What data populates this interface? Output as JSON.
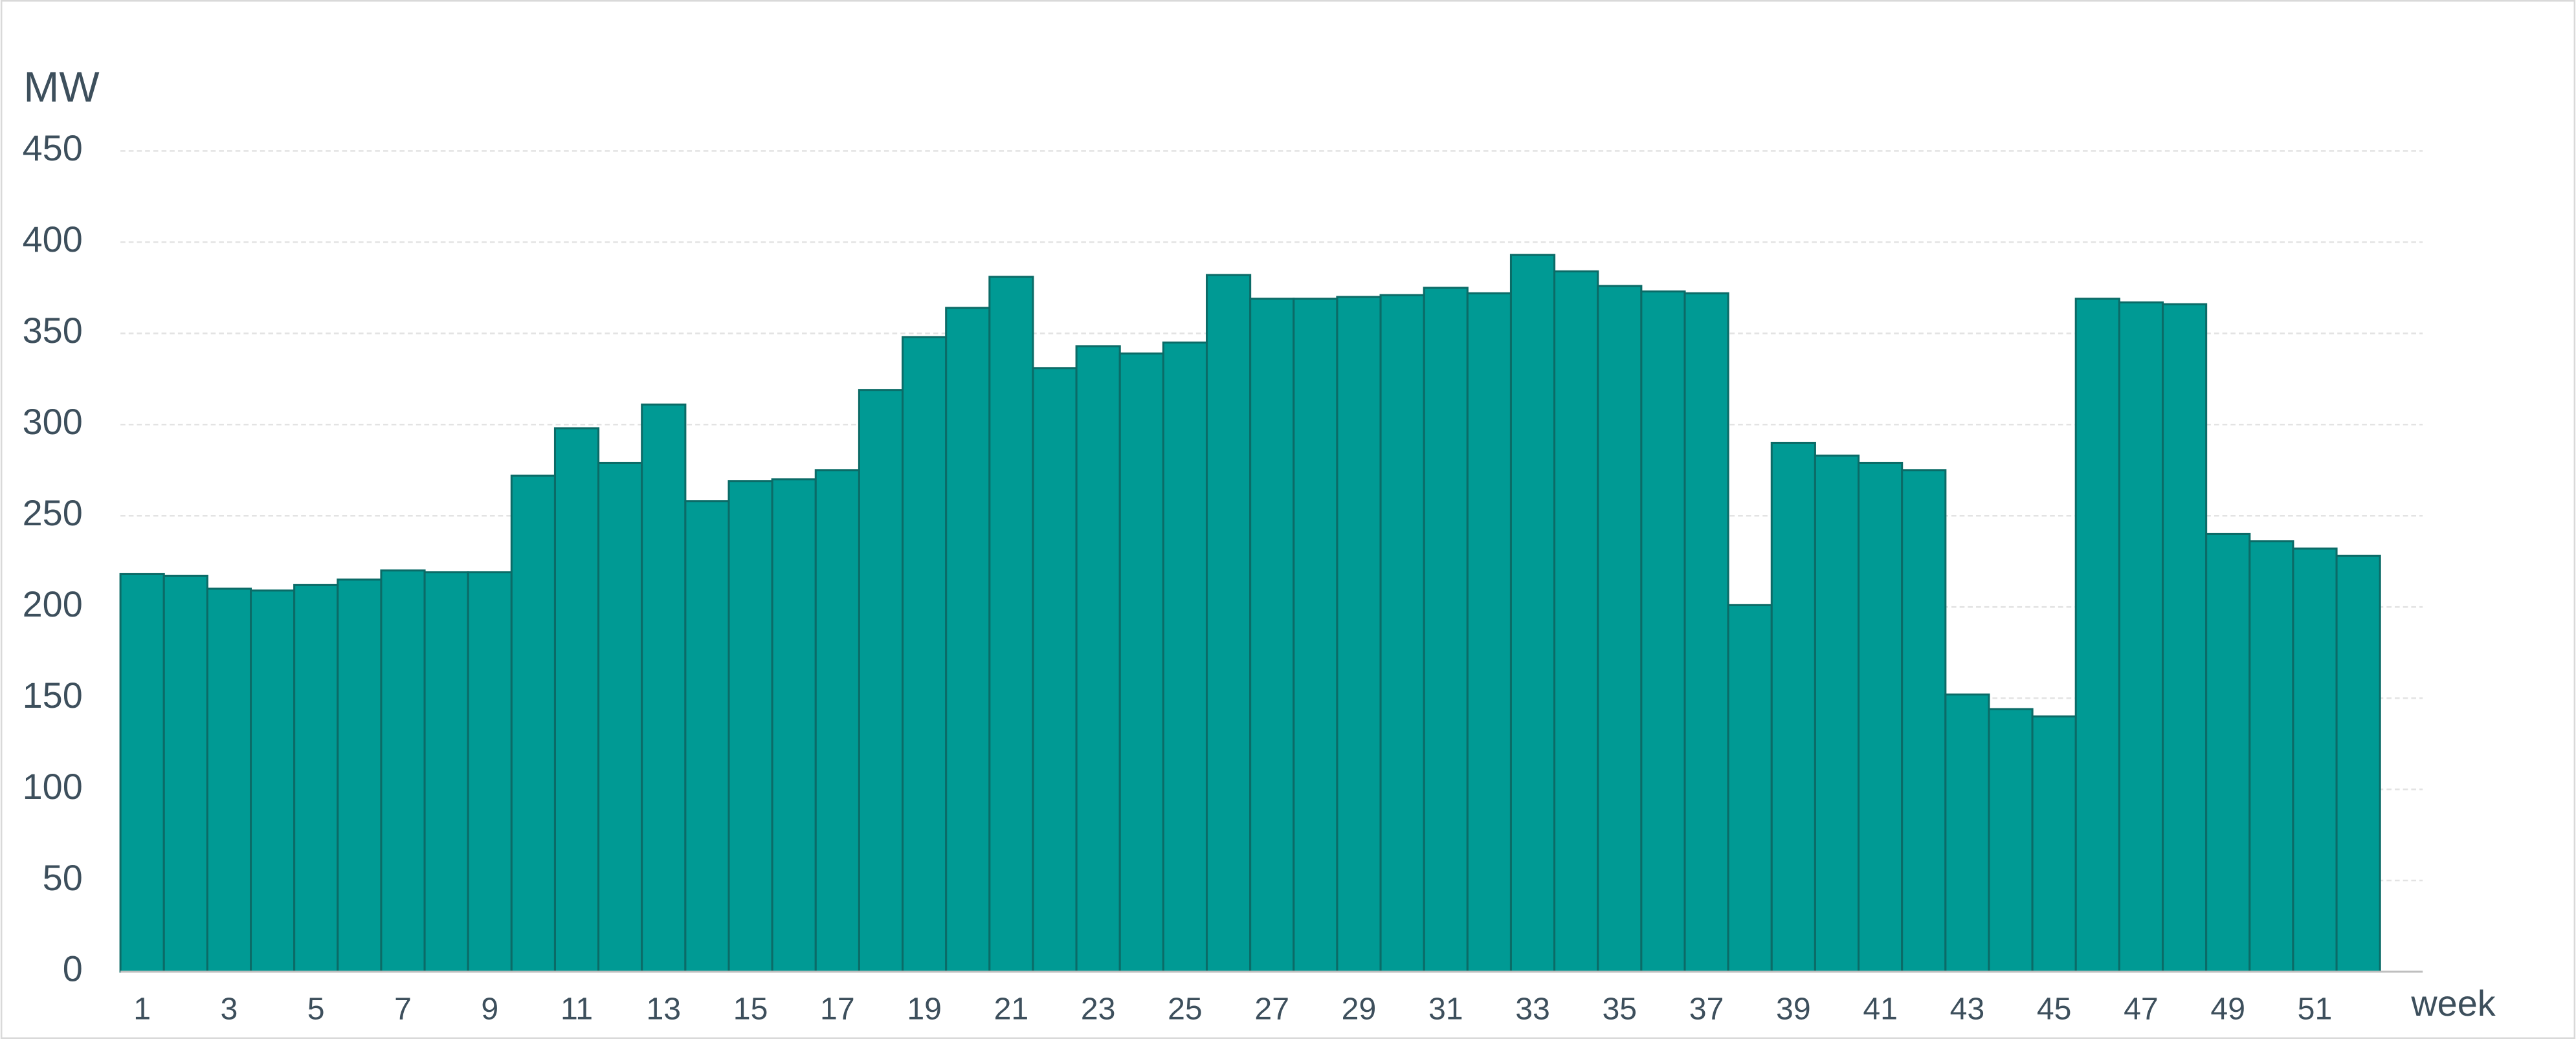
{
  "chart_data": {
    "type": "bar",
    "y_label": "MW",
    "x_label": "week",
    "categories": [
      1,
      null,
      3,
      null,
      5,
      null,
      7,
      null,
      9,
      null,
      11,
      null,
      13,
      null,
      15,
      null,
      17,
      null,
      19,
      null,
      21,
      null,
      23,
      null,
      25,
      null,
      27,
      null,
      29,
      null,
      31,
      null,
      33,
      null,
      35,
      null,
      37,
      null,
      39,
      null,
      41,
      null,
      43,
      null,
      45,
      null,
      47,
      null,
      49,
      null,
      51,
      null
    ],
    "values": [
      218,
      217,
      210,
      209,
      212,
      215,
      220,
      219,
      219,
      272,
      298,
      279,
      311,
      258,
      269,
      270,
      275,
      319,
      348,
      364,
      381,
      331,
      343,
      339,
      345,
      382,
      369,
      369,
      370,
      371,
      375,
      372,
      393,
      384,
      376,
      373,
      372,
      201,
      290,
      283,
      279,
      275,
      152,
      144,
      140,
      369,
      367,
      366,
      240,
      236,
      232,
      228
    ],
    "color": "#009a94",
    "ylim": [
      0,
      450
    ],
    "yticks": [
      0,
      50,
      100,
      150,
      200,
      250,
      300,
      350,
      400,
      450
    ],
    "grid": true
  }
}
